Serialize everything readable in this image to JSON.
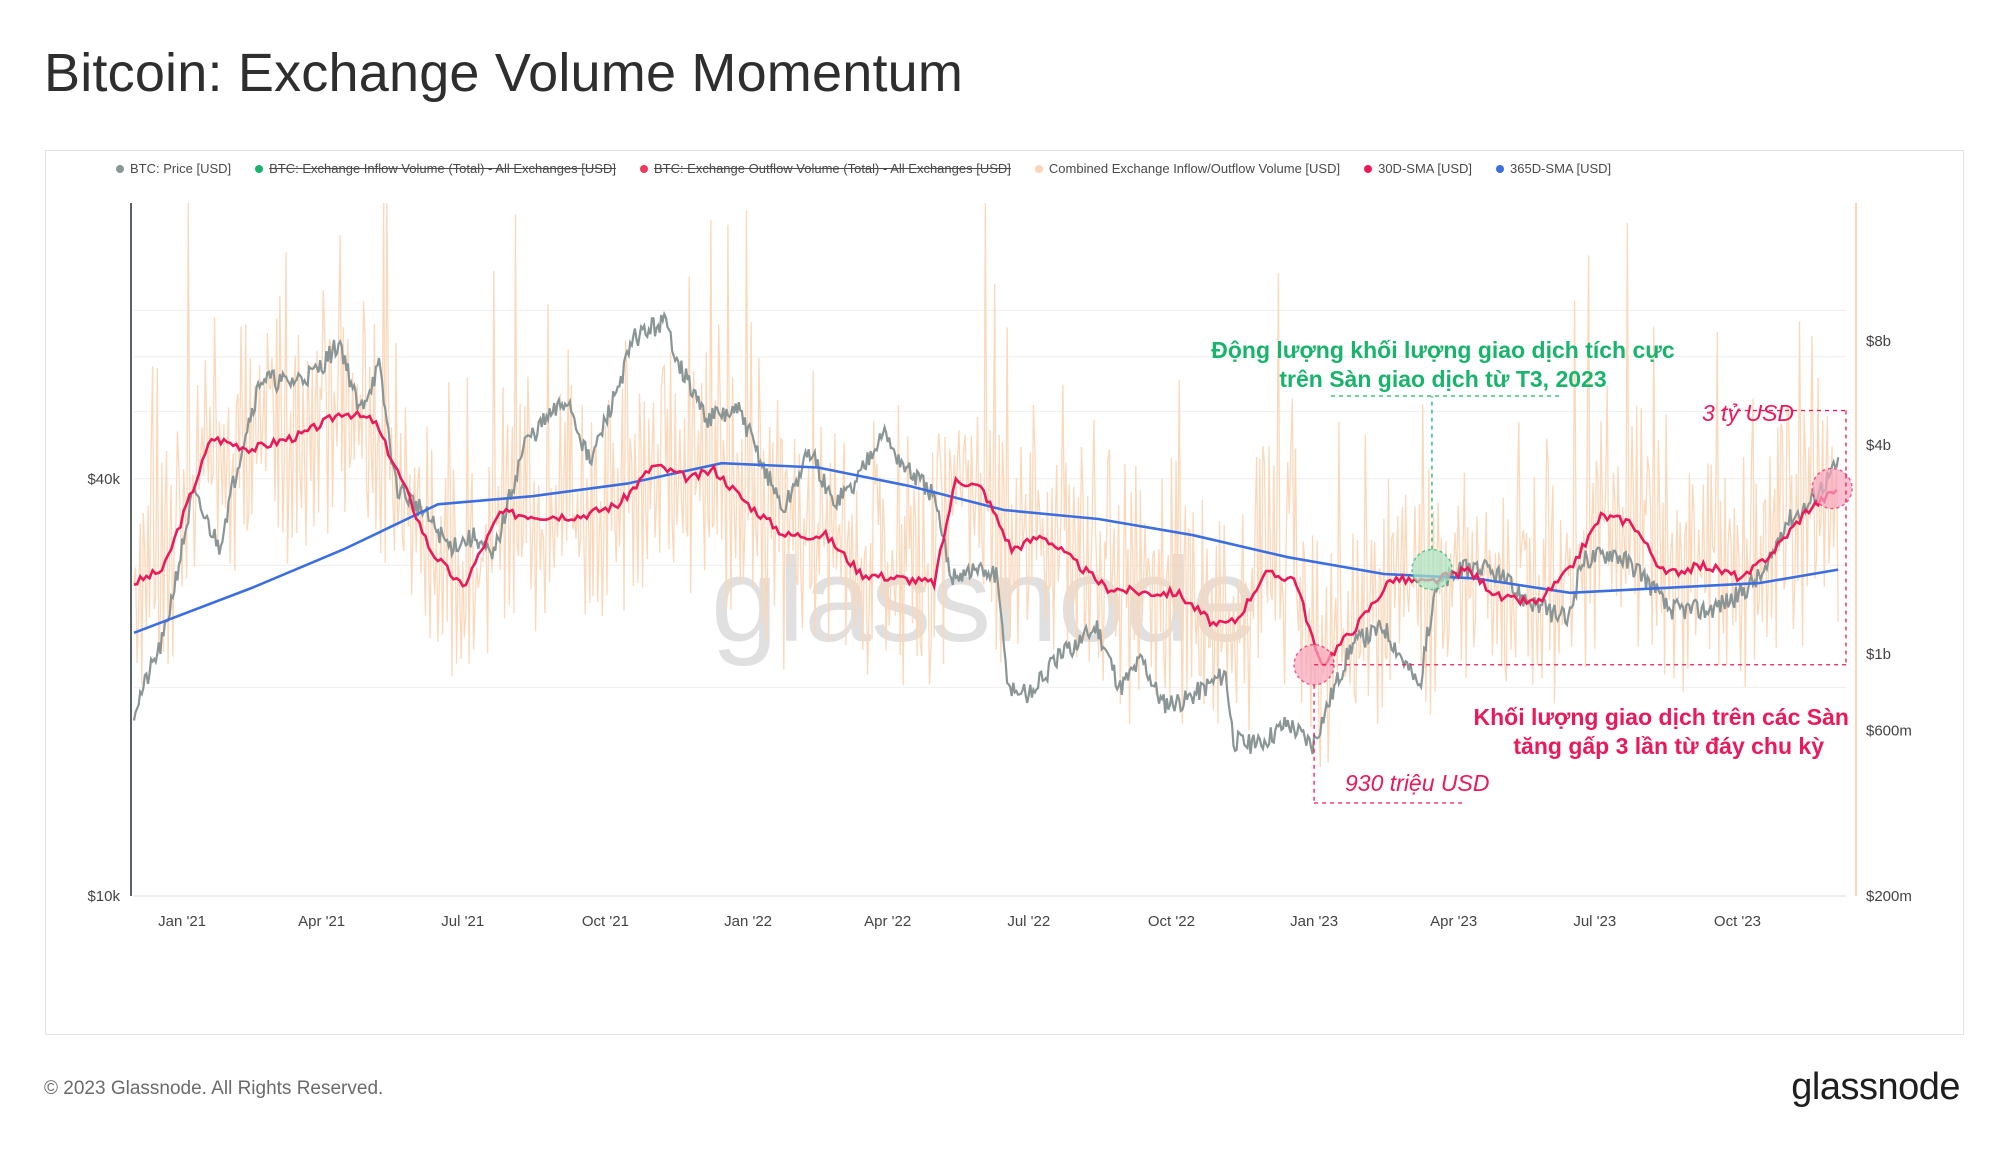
{
  "title": "Bitcoin: Exchange Volume Momentum",
  "footer": {
    "copyright": "© 2023 Glassnode. All Rights Reserved.",
    "brand": "glassnode"
  },
  "watermark": "glassnode",
  "colors": {
    "price": "#8a9595",
    "inflow": "#19b46b",
    "outflow": "#ea3c5a",
    "combined": "#fbd6b6",
    "sma30": "#ea1a5a",
    "sma365": "#3b6ee0"
  },
  "legend": [
    {
      "label": "BTC: Price [USD]",
      "color": "#8a9595",
      "struck": false
    },
    {
      "label": "BTC: Exchange Inflow Volume (Total) - All Exchanges [USD]",
      "color": "#19b46b",
      "struck": true
    },
    {
      "label": "BTC: Exchange Outflow Volume (Total) - All Exchanges [USD]",
      "color": "#ea3c5a",
      "struck": true
    },
    {
      "label": "Combined Exchange Inflow/Outflow Volume [USD]",
      "color": "#fbd6b6",
      "struck": false
    },
    {
      "label": "30D-SMA [USD]",
      "color": "#ea1a5a",
      "struck": false
    },
    {
      "label": "365D-SMA [USD]",
      "color": "#3b6ee0",
      "struck": false
    }
  ],
  "annotations": {
    "green_line1": "Động lượng khối lượng giao dịch tích cực",
    "green_line2": "trên Sàn giao dịch từ T3, 2023",
    "red_line1": "Khối lượng giao dịch trên các Sàn",
    "red_line2": "tăng gấp 3 lần từ đáy chu kỳ",
    "top_value": "3 tỷ USD",
    "bottom_value": "930 triệu USD"
  },
  "chart_data": {
    "type": "line",
    "title": "Bitcoin: Exchange Volume Momentum",
    "x_range": [
      "2020-12-01",
      "2023-12-10"
    ],
    "x_ticks": [
      "Jan '21",
      "Apr '21",
      "Jul '21",
      "Oct '21",
      "Jan '22",
      "Apr '22",
      "Jul '22",
      "Oct '22",
      "Jan '23",
      "Apr '23",
      "Jul '23",
      "Oct '23"
    ],
    "y_left": {
      "scale": "log",
      "ticks": [
        "$40k",
        "$10k"
      ],
      "range": [
        10000,
        100000
      ]
    },
    "y_right": {
      "scale": "log",
      "ticks": [
        "$8b",
        "$4b",
        "$1b",
        "$600m",
        "$200m"
      ],
      "range": [
        200000000,
        20000000000
      ]
    },
    "series": [
      {
        "name": "BTC: Price [USD]",
        "axis": "left",
        "x": [
          "2020-12-01",
          "2020-12-20",
          "2021-01-08",
          "2021-01-25",
          "2021-02-10",
          "2021-02-21",
          "2021-03-10",
          "2021-03-28",
          "2021-04-13",
          "2021-04-25",
          "2021-05-08",
          "2021-05-19",
          "2021-06-05",
          "2021-06-22",
          "2021-07-10",
          "2021-07-20",
          "2021-08-10",
          "2021-08-25",
          "2021-09-07",
          "2021-09-21",
          "2021-10-06",
          "2021-10-20",
          "2021-11-08",
          "2021-11-20",
          "2021-12-05",
          "2021-12-27",
          "2022-01-10",
          "2022-01-24",
          "2022-02-10",
          "2022-02-24",
          "2022-03-10",
          "2022-03-28",
          "2022-04-10",
          "2022-04-30",
          "2022-05-12",
          "2022-05-28",
          "2022-06-10",
          "2022-06-18",
          "2022-07-01",
          "2022-07-20",
          "2022-08-14",
          "2022-08-29",
          "2022-09-12",
          "2022-09-25",
          "2022-10-10",
          "2022-10-25",
          "2022-11-05",
          "2022-11-10",
          "2022-11-25",
          "2022-12-15",
          "2022-12-31",
          "2023-01-13",
          "2023-01-25",
          "2023-02-15",
          "2023-03-10",
          "2023-03-20",
          "2023-04-13",
          "2023-04-30",
          "2023-05-15",
          "2023-06-14",
          "2023-06-23",
          "2023-07-13",
          "2023-07-31",
          "2023-08-17",
          "2023-09-11",
          "2023-09-30",
          "2023-10-20",
          "2023-10-31",
          "2023-11-15",
          "2023-12-05"
        ],
        "values": [
          18500,
          23500,
          38000,
          32000,
          46000,
          56000,
          55000,
          57000,
          63000,
          50000,
          58000,
          39000,
          36000,
          32000,
          33000,
          30500,
          45000,
          49000,
          52000,
          42000,
          52000,
          64000,
          67500,
          57000,
          49000,
          50000,
          42000,
          36000,
          44000,
          37000,
          39000,
          47000,
          42000,
          38000,
          29000,
          29500,
          29000,
          20000,
          19500,
          22000,
          24500,
          20000,
          22000,
          19000,
          19200,
          20200,
          21000,
          16800,
          16500,
          17800,
          16550,
          19700,
          23000,
          24500,
          20000,
          28000,
          30000,
          29000,
          27000,
          25000,
          30500,
          31400,
          29300,
          26000,
          25800,
          27000,
          29500,
          34500,
          36500,
          42000
        ]
      },
      {
        "name": "30D-SMA [USD]",
        "axis": "right",
        "x": [
          "2020-12-01",
          "2020-12-20",
          "2021-01-20",
          "2021-02-15",
          "2021-03-20",
          "2021-04-15",
          "2021-05-05",
          "2021-05-25",
          "2021-06-10",
          "2021-07-01",
          "2021-07-25",
          "2021-08-20",
          "2021-09-15",
          "2021-10-10",
          "2021-11-01",
          "2021-11-25",
          "2021-12-10",
          "2022-01-01",
          "2022-01-25",
          "2022-02-20",
          "2022-03-15",
          "2022-04-10",
          "2022-05-01",
          "2022-05-15",
          "2022-06-01",
          "2022-06-20",
          "2022-07-10",
          "2022-07-30",
          "2022-08-20",
          "2022-09-15",
          "2022-10-05",
          "2022-10-30",
          "2022-11-12",
          "2022-11-30",
          "2022-12-20",
          "2023-01-05",
          "2023-01-28",
          "2023-02-20",
          "2023-03-15",
          "2023-04-10",
          "2023-05-01",
          "2023-05-25",
          "2023-06-15",
          "2023-07-05",
          "2023-07-25",
          "2023-08-15",
          "2023-09-10",
          "2023-10-05",
          "2023-10-25",
          "2023-11-15",
          "2023-12-05"
        ],
        "values": [
          1600000000,
          1750000000,
          4200000000,
          3900000000,
          4300000000,
          5000000000,
          4700000000,
          3000000000,
          2000000000,
          1550000000,
          2550000000,
          2500000000,
          2500000000,
          2700000000,
          3500000000,
          3200000000,
          3400000000,
          2700000000,
          2200000000,
          2200000000,
          1700000000,
          1650000000,
          1600000000,
          3200000000,
          3000000000,
          2000000000,
          2200000000,
          1850000000,
          1550000000,
          1500000000,
          1500000000,
          1200000000,
          1250000000,
          1700000000,
          1650000000,
          920000000,
          1200000000,
          1650000000,
          1600000000,
          1750000000,
          1450000000,
          1400000000,
          1750000000,
          2500000000,
          2400000000,
          1700000000,
          1800000000,
          1650000000,
          2000000000,
          2600000000,
          3000000000
        ]
      },
      {
        "name": "365D-SMA [USD]",
        "axis": "right",
        "x": [
          "2020-12-01",
          "2021-02-15",
          "2021-04-15",
          "2021-06-15",
          "2021-08-15",
          "2021-10-15",
          "2021-12-15",
          "2022-02-15",
          "2022-04-15",
          "2022-06-15",
          "2022-08-15",
          "2022-10-15",
          "2022-12-15",
          "2023-02-15",
          "2023-04-15",
          "2023-06-15",
          "2023-08-15",
          "2023-10-15",
          "2023-12-05"
        ],
        "values": [
          1150000000,
          1550000000,
          2000000000,
          2700000000,
          2850000000,
          3100000000,
          3550000000,
          3450000000,
          3050000000,
          2600000000,
          2450000000,
          2200000000,
          1900000000,
          1700000000,
          1650000000,
          1500000000,
          1550000000,
          1600000000,
          1750000000
        ]
      }
    ],
    "band": {
      "name": "Combined Exchange Inflow/Outflow Volume [USD]",
      "axis": "right",
      "note": "daily values oscillating around the 30D-SMA between roughly $600m and $11b"
    },
    "markers": [
      {
        "x": "2023-01-01",
        "value": 930000000,
        "label": "930 triệu USD"
      },
      {
        "x": "2023-03-18",
        "value": 1750000000,
        "label": "Động lượng khối lượng giao dịch tích cực"
      },
      {
        "x": "2023-12-01",
        "value": 3000000000,
        "label": "3 tỷ USD"
      }
    ]
  }
}
